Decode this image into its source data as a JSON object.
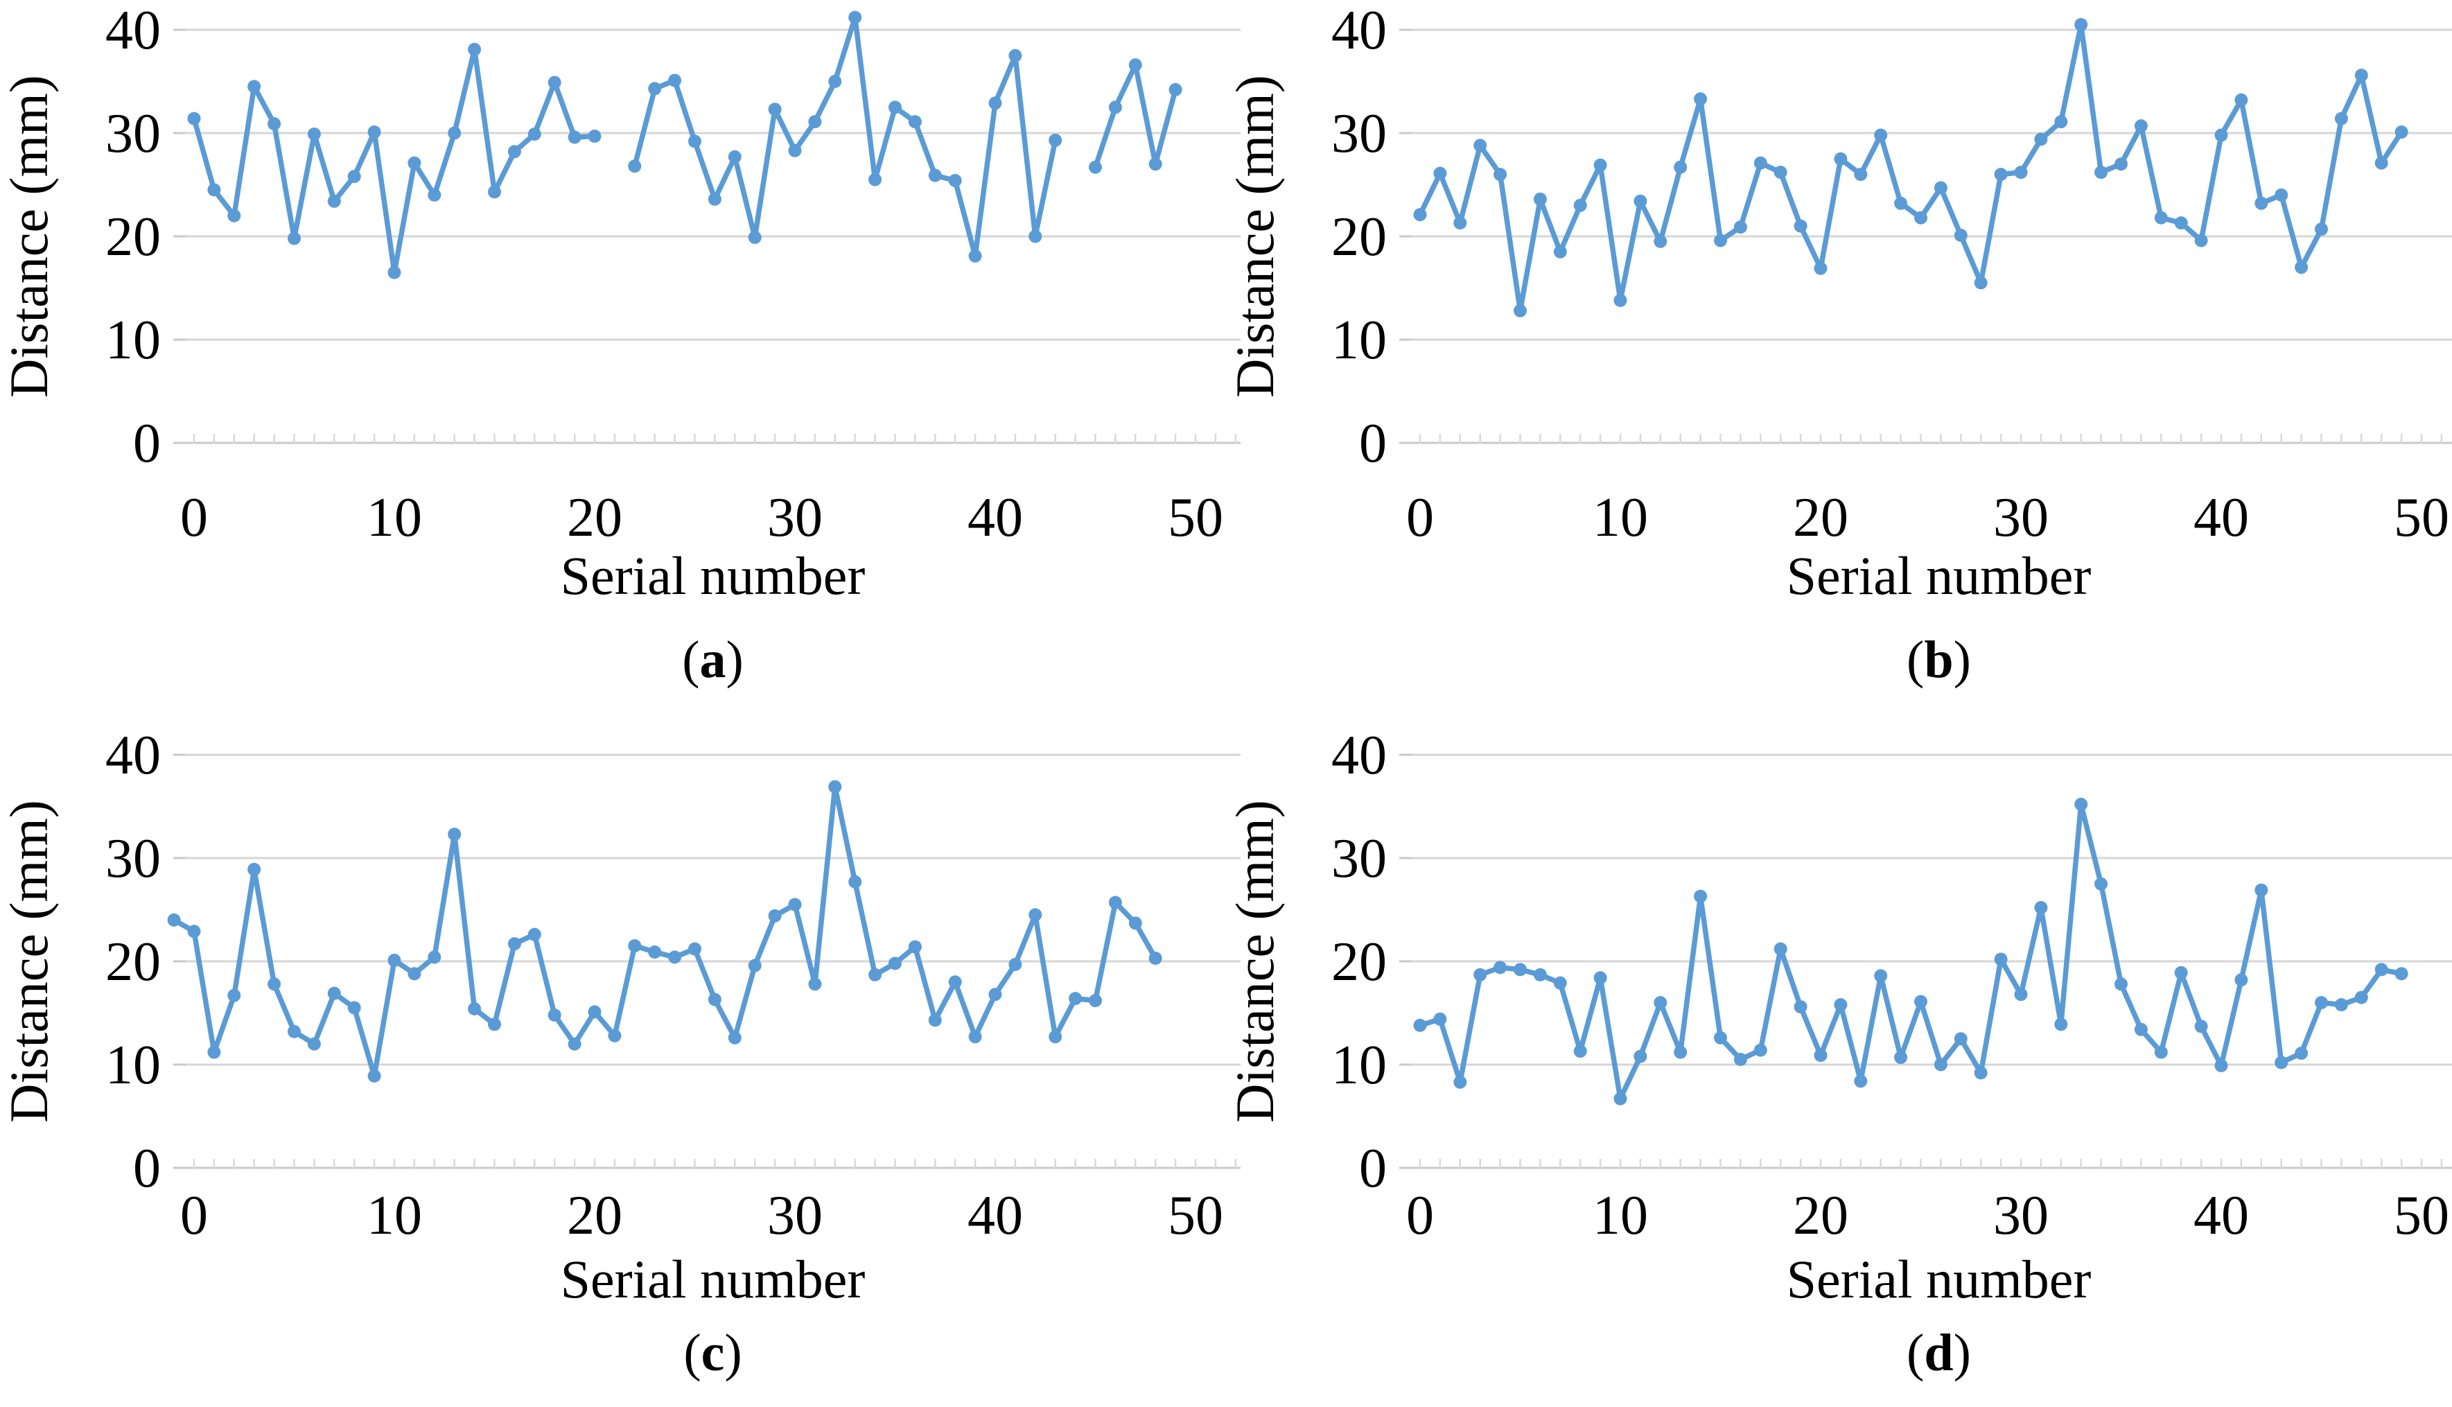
{
  "figure": {
    "background": "#ffffff",
    "accent_color": "#5B9BD5",
    "gridline_color": "#D6D6D6",
    "axis_color": "#C9C9C9",
    "minor_tick_color": "#D9D9D9",
    "text_color": "#000000"
  },
  "chart_data": [
    {
      "id": "a",
      "type": "line",
      "title": "",
      "xlabel": "Serial number",
      "ylabel": "Distance (mm)",
      "caption_letter": "a",
      "xlim": [
        0,
        50
      ],
      "ylim": [
        0,
        40
      ],
      "xticks": [
        0,
        10,
        20,
        30,
        40,
        50
      ],
      "yticks": [
        0,
        10,
        20,
        30,
        40
      ],
      "grid": "horizontal",
      "legend": "none",
      "x_start_offset": 0,
      "x": [
        0,
        1,
        2,
        3,
        4,
        5,
        6,
        7,
        8,
        9,
        10,
        11,
        12,
        13,
        14,
        15,
        16,
        17,
        18,
        19,
        20,
        21,
        22,
        23,
        24,
        25,
        26,
        27,
        28,
        29,
        30,
        31,
        32,
        33,
        34,
        35,
        36,
        37,
        38,
        39,
        40,
        41,
        42,
        43,
        44,
        45,
        46,
        47,
        48,
        49
      ],
      "values": [
        31.4,
        24.5,
        22.0,
        34.5,
        30.9,
        19.8,
        29.9,
        23.4,
        25.8,
        30.1,
        16.5,
        27.1,
        24.0,
        30.0,
        38.1,
        24.3,
        28.2,
        29.9,
        34.9,
        29.6,
        29.7,
        null,
        26.8,
        34.3,
        35.1,
        29.2,
        23.6,
        27.7,
        19.9,
        32.3,
        28.3,
        31.1,
        35.0,
        41.2,
        25.5,
        32.5,
        31.1,
        25.9,
        25.4,
        18.1,
        32.9,
        37.5,
        20.0,
        29.3,
        null,
        26.7,
        32.5,
        36.6,
        27.0,
        34.2
      ]
    },
    {
      "id": "b",
      "type": "line",
      "title": "",
      "xlabel": "Serial number",
      "ylabel": "Distance (mm)",
      "caption_letter": "b",
      "xlim": [
        0,
        50
      ],
      "ylim": [
        0,
        40
      ],
      "xticks": [
        0,
        10,
        20,
        30,
        40,
        50
      ],
      "yticks": [
        0,
        10,
        20,
        30,
        40
      ],
      "grid": "horizontal",
      "legend": "none",
      "x_start_offset": 0,
      "x": [
        0,
        1,
        2,
        3,
        4,
        5,
        6,
        7,
        8,
        9,
        10,
        11,
        12,
        13,
        14,
        15,
        16,
        17,
        18,
        19,
        20,
        21,
        22,
        23,
        24,
        25,
        26,
        27,
        28,
        29,
        30,
        31,
        32,
        33,
        34,
        35,
        36,
        37,
        38,
        39,
        40,
        41,
        42,
        43,
        44,
        45,
        46,
        47,
        48,
        49
      ],
      "values": [
        22.1,
        26.1,
        21.3,
        28.8,
        26.0,
        12.8,
        23.6,
        18.5,
        23.0,
        26.9,
        13.8,
        23.4,
        19.5,
        26.7,
        33.3,
        19.6,
        20.9,
        27.1,
        26.2,
        21.0,
        16.9,
        27.5,
        26.0,
        29.8,
        23.2,
        21.8,
        24.7,
        20.1,
        15.5,
        26.0,
        26.2,
        29.4,
        31.1,
        40.5,
        26.2,
        27.0,
        30.7,
        21.8,
        21.3,
        19.6,
        29.8,
        33.2,
        23.2,
        24.0,
        17.0,
        20.7,
        31.4,
        35.6,
        27.1,
        30.1
      ]
    },
    {
      "id": "c",
      "type": "line",
      "title": "",
      "xlabel": "Serial number",
      "ylabel": "Distance (mm)",
      "caption_letter": "c",
      "xlim": [
        0,
        50
      ],
      "ylim": [
        0,
        40
      ],
      "xticks": [
        0,
        10,
        20,
        30,
        40,
        50
      ],
      "yticks": [
        0,
        10,
        20,
        30,
        40
      ],
      "grid": "horizontal",
      "legend": "none",
      "x_start_offset": -1,
      "x": [
        0,
        1,
        2,
        3,
        4,
        5,
        6,
        7,
        8,
        9,
        10,
        11,
        12,
        13,
        14,
        15,
        16,
        17,
        18,
        19,
        20,
        21,
        22,
        23,
        24,
        25,
        26,
        27,
        28,
        29,
        30,
        31,
        32,
        33,
        34,
        35,
        36,
        37,
        38,
        39,
        40,
        41,
        42,
        43,
        44,
        45,
        46,
        47,
        48,
        49
      ],
      "values": [
        24.0,
        22.9,
        11.2,
        16.7,
        28.9,
        17.8,
        13.2,
        12.0,
        16.9,
        15.5,
        8.9,
        20.1,
        18.8,
        20.4,
        32.3,
        15.4,
        13.9,
        21.7,
        22.6,
        14.8,
        12.0,
        15.1,
        12.8,
        21.5,
        20.9,
        20.4,
        21.2,
        16.3,
        12.6,
        19.6,
        24.4,
        25.5,
        17.8,
        36.9,
        27.7,
        18.7,
        19.8,
        21.4,
        14.3,
        18.0,
        12.7,
        16.8,
        19.7,
        24.5,
        12.7,
        16.4,
        16.2,
        25.7,
        23.7,
        20.3
      ]
    },
    {
      "id": "d",
      "type": "line",
      "title": "",
      "xlabel": "Serial number",
      "ylabel": "Distance (mm)",
      "caption_letter": "d",
      "xlim": [
        0,
        50
      ],
      "ylim": [
        0,
        40
      ],
      "xticks": [
        0,
        10,
        20,
        30,
        40,
        50
      ],
      "yticks": [
        0,
        10,
        20,
        30,
        40
      ],
      "grid": "horizontal",
      "legend": "none",
      "x_start_offset": 0,
      "x": [
        0,
        1,
        2,
        3,
        4,
        5,
        6,
        7,
        8,
        9,
        10,
        11,
        12,
        13,
        14,
        15,
        16,
        17,
        18,
        19,
        20,
        21,
        22,
        23,
        24,
        25,
        26,
        27,
        28,
        29,
        30,
        31,
        32,
        33,
        34,
        35,
        36,
        37,
        38,
        39,
        40,
        41,
        42,
        43,
        44,
        45,
        46,
        47,
        48,
        49
      ],
      "values": [
        13.8,
        14.4,
        8.3,
        18.7,
        19.4,
        19.2,
        18.7,
        17.9,
        11.3,
        18.4,
        6.7,
        10.8,
        16.0,
        11.2,
        26.3,
        12.6,
        10.5,
        11.4,
        21.2,
        15.6,
        10.9,
        15.8,
        8.4,
        18.6,
        10.7,
        16.1,
        10.0,
        12.5,
        9.2,
        20.2,
        16.8,
        25.2,
        13.9,
        35.2,
        27.5,
        17.8,
        13.4,
        11.2,
        18.9,
        13.7,
        9.9,
        18.2,
        26.9,
        10.2,
        11.1,
        16.0,
        15.8,
        16.5,
        19.2,
        18.8
      ]
    }
  ]
}
